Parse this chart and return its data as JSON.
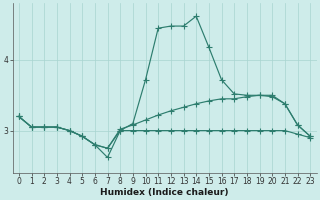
{
  "xlabel": "Humidex (Indice chaleur)",
  "x": [
    0,
    1,
    2,
    3,
    4,
    5,
    6,
    7,
    8,
    9,
    10,
    11,
    12,
    13,
    14,
    15,
    16,
    17,
    18,
    19,
    20,
    21,
    22,
    23
  ],
  "line_max": [
    3.2,
    3.05,
    3.05,
    3.05,
    3.0,
    2.92,
    2.8,
    2.62,
    3.0,
    3.1,
    3.72,
    4.45,
    4.48,
    4.48,
    4.62,
    4.18,
    3.72,
    3.52,
    3.5,
    3.5,
    3.48,
    3.38,
    3.08,
    2.92
  ],
  "line_mean": [
    3.2,
    3.05,
    3.05,
    3.05,
    3.0,
    2.92,
    2.8,
    2.75,
    3.02,
    3.08,
    3.15,
    3.22,
    3.28,
    3.33,
    3.38,
    3.42,
    3.45,
    3.45,
    3.48,
    3.5,
    3.5,
    3.38,
    3.08,
    2.92
  ],
  "line_min": [
    3.2,
    3.05,
    3.05,
    3.05,
    3.0,
    2.92,
    2.8,
    2.75,
    3.0,
    3.0,
    3.0,
    3.0,
    3.0,
    3.0,
    3.0,
    3.0,
    3.0,
    3.0,
    3.0,
    3.0,
    3.0,
    3.0,
    2.95,
    2.9
  ],
  "line_color": "#2d7d6e",
  "bg_color": "#ceecea",
  "grid_color": "#a8d4d0",
  "yticks": [
    3,
    4
  ],
  "ylim": [
    2.4,
    4.8
  ],
  "xlim": [
    -0.5,
    23.5
  ]
}
